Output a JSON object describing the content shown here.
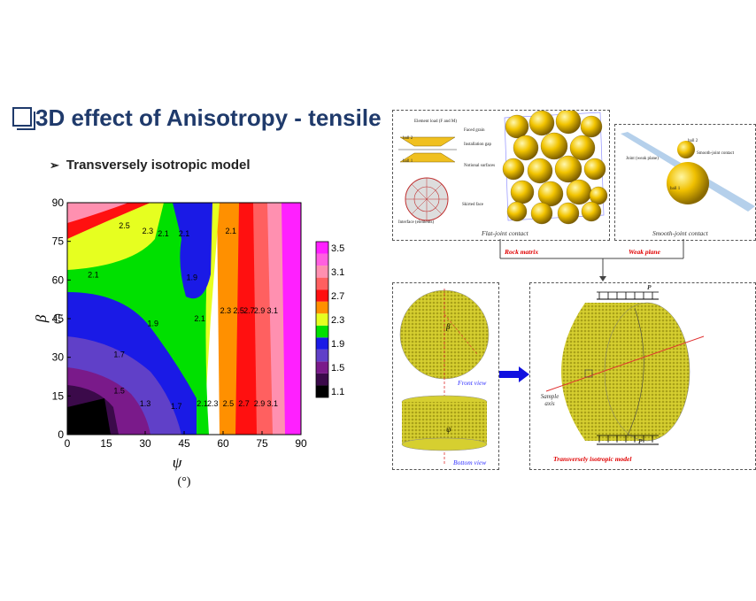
{
  "slide": {
    "title": "3D effect of Anisotropy - tensile",
    "bullet": "Transversely isotropic model"
  },
  "chart_data": {
    "type": "contour",
    "x": [
      0,
      15,
      30,
      45,
      60,
      75,
      90
    ],
    "xlabel": "ψ",
    "xunit": "(°)",
    "ylabel": "β",
    "yunit": "(°)",
    "xlim": [
      0,
      90
    ],
    "ylim": [
      0,
      90
    ],
    "xticks": [
      "0",
      "15",
      "30",
      "45",
      "60",
      "75",
      "90"
    ],
    "yticks": [
      "0",
      "15",
      "30",
      "45",
      "60",
      "75",
      "90"
    ],
    "colorbar": {
      "levels": [
        1.1,
        1.3,
        1.5,
        1.7,
        1.9,
        2.1,
        2.3,
        2.5,
        2.7,
        2.9,
        3.1,
        3.3,
        3.5
      ],
      "ticks": [
        "1.1",
        "1.5",
        "1.9",
        "2.3",
        "2.7",
        "3.1",
        "3.5"
      ],
      "colors": [
        "#000000",
        "#3b0a4a",
        "#7a1a8a",
        "#6040c8",
        "#1a1ae6",
        "#00e000",
        "#e6ff20",
        "#ff9000",
        "#ff1010",
        "#ff6060",
        "#ff90b0",
        "#ff60e0",
        "#ff20ff"
      ]
    },
    "contour_labels": [
      {
        "text": "2.5",
        "psi": 22,
        "beta": 80
      },
      {
        "text": "2.3",
        "psi": 31,
        "beta": 78
      },
      {
        "text": "2.1",
        "psi": 37,
        "beta": 77
      },
      {
        "text": "2.1",
        "psi": 45,
        "beta": 77
      },
      {
        "text": "2.1",
        "psi": 63,
        "beta": 78
      },
      {
        "text": "2.1",
        "psi": 10,
        "beta": 61
      },
      {
        "text": "1.9",
        "psi": 48,
        "beta": 60
      },
      {
        "text": "1.9",
        "psi": 33,
        "beta": 42
      },
      {
        "text": "2.1",
        "psi": 51,
        "beta": 44
      },
      {
        "text": "2.3",
        "psi": 61,
        "beta": 47
      },
      {
        "text": "2.5",
        "psi": 66,
        "beta": 47
      },
      {
        "text": "2.7",
        "psi": 70,
        "beta": 47
      },
      {
        "text": "2.9",
        "psi": 74,
        "beta": 47
      },
      {
        "text": "3.1",
        "psi": 79,
        "beta": 47
      },
      {
        "text": "1.7",
        "psi": 20,
        "beta": 30
      },
      {
        "text": "1.5",
        "psi": 20,
        "beta": 16
      },
      {
        "text": "1.3",
        "psi": 30,
        "beta": 11
      },
      {
        "text": "1.7",
        "psi": 42,
        "beta": 10
      },
      {
        "text": "2.1",
        "psi": 52,
        "beta": 11
      },
      {
        "text": "2.3",
        "psi": 56,
        "beta": 11
      },
      {
        "text": "2.5",
        "psi": 62,
        "beta": 11
      },
      {
        "text": "2.7",
        "psi": 68,
        "beta": 11
      },
      {
        "text": "2.9",
        "psi": 74,
        "beta": 11
      },
      {
        "text": "3.1",
        "psi": 79,
        "beta": 11
      }
    ]
  },
  "diagram": {
    "flat_joint": {
      "caption": "Flat-joint contact",
      "element_load": "Element load (F and M)",
      "faced_grain": "Faced grain",
      "installation_gap": "Installation gap",
      "ball2": "ball 2",
      "ball1": "ball 1",
      "notional": "Notional surfaces",
      "skirted": "Skirted face",
      "interface": "Interface (elements)"
    },
    "smooth_joint": {
      "caption": "Smooth-joint contact",
      "joint": "Joint (weak plane)",
      "ball2": "ball 2",
      "ball1": "ball 1",
      "sj_contact": "Smooth-joint contact"
    },
    "rock_matrix": "Rock matrix",
    "weak_plane": "Weak plane",
    "front_view": "Front view",
    "bottom_view": "Bottom view",
    "sample_axis": "Sample axis",
    "model_caption": "Transversely isotropic model",
    "load_top": "P",
    "load_bottom": "P",
    "beta_sym": "β",
    "psi_sym": "ψ"
  }
}
